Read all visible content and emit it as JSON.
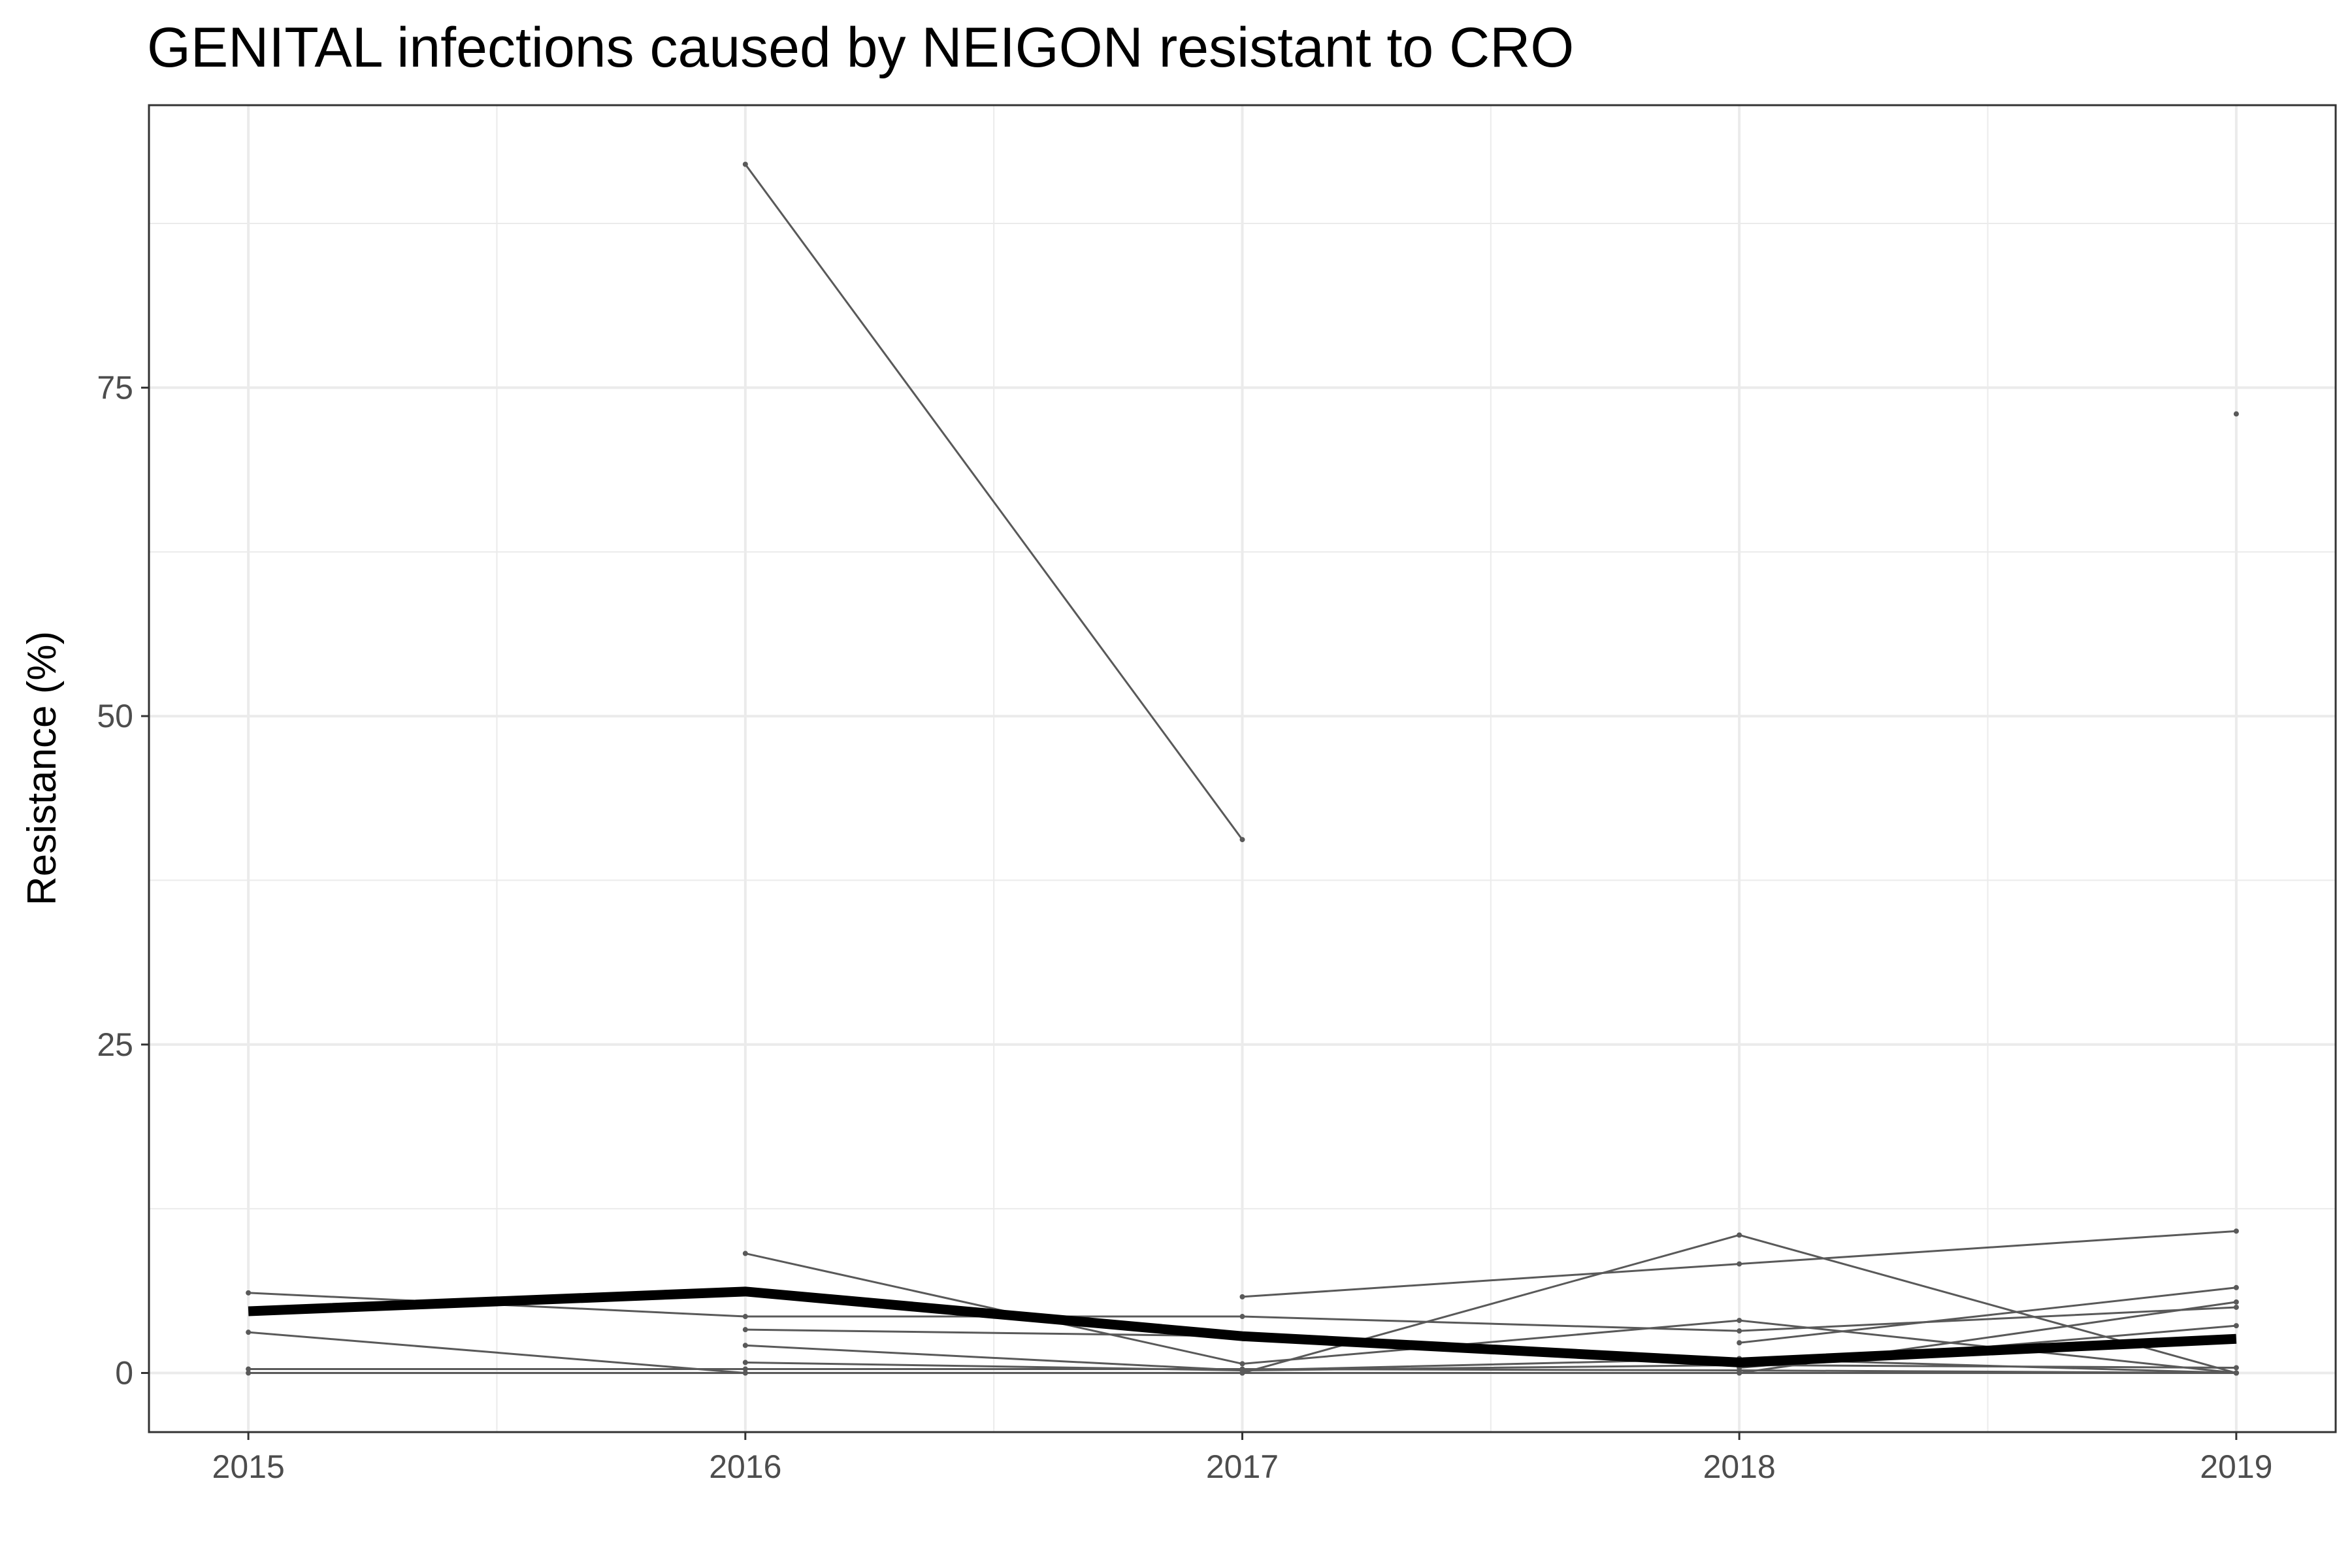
{
  "chart_data": {
    "type": "line",
    "title": "GENITAL infections caused by NEIGON resistant to CRO",
    "xlabel": "",
    "ylabel": "Resistance (%)",
    "x": [
      2015,
      2016,
      2017,
      2018,
      2019
    ],
    "x_tick_labels": [
      "2015",
      "2016",
      "2017",
      "2018",
      "2019"
    ],
    "xlim": [
      2014.8,
      2019.2
    ],
    "ylim": [
      -4.5,
      96.5
    ],
    "y_major_ticks": [
      0,
      25,
      50,
      75
    ],
    "y_minor_ticks": [
      12.5,
      37.5,
      62.5,
      87.5
    ],
    "x_minor_ticks": [
      2015.5,
      2016.5,
      2017.5,
      2018.5
    ],
    "grid": true,
    "legend": "none",
    "colors": {
      "series": "#595959",
      "summary": "#000000",
      "panel_border": "#333333",
      "grid": "#ebebeb"
    },
    "series": [
      {
        "values": [
          null,
          92.0,
          40.6,
          null,
          73.0
        ]
      },
      {
        "values": [
          6.1,
          4.3,
          4.3,
          3.2,
          5.0
        ]
      },
      {
        "values": [
          3.1,
          0.0,
          0.0,
          null,
          0.0
        ]
      },
      {
        "values": [
          0.3,
          0.3,
          0.3,
          0.2,
          0.0
        ]
      },
      {
        "values": [
          0.0,
          0.0,
          0.0,
          0.0,
          0.0
        ]
      },
      {
        "values": [
          null,
          9.1,
          0.7,
          4.0,
          0.0
        ]
      },
      {
        "values": [
          null,
          3.3,
          2.8,
          null,
          null
        ]
      },
      {
        "values": [
          null,
          2.1,
          0.2,
          1.1,
          0.0
        ]
      },
      {
        "values": [
          null,
          0.8,
          0.2,
          0.6,
          0.4
        ]
      },
      {
        "values": [
          null,
          null,
          5.8,
          8.3,
          10.8
        ]
      },
      {
        "values": [
          null,
          null,
          0.0,
          10.5,
          0.0
        ]
      },
      {
        "values": [
          null,
          null,
          null,
          2.3,
          6.5
        ]
      },
      {
        "values": [
          null,
          null,
          null,
          0.0,
          5.4
        ]
      },
      {
        "values": [
          null,
          null,
          null,
          0.4,
          3.6
        ]
      }
    ],
    "summary_series": {
      "values": [
        4.7,
        6.2,
        2.8,
        0.8,
        2.6
      ]
    }
  }
}
